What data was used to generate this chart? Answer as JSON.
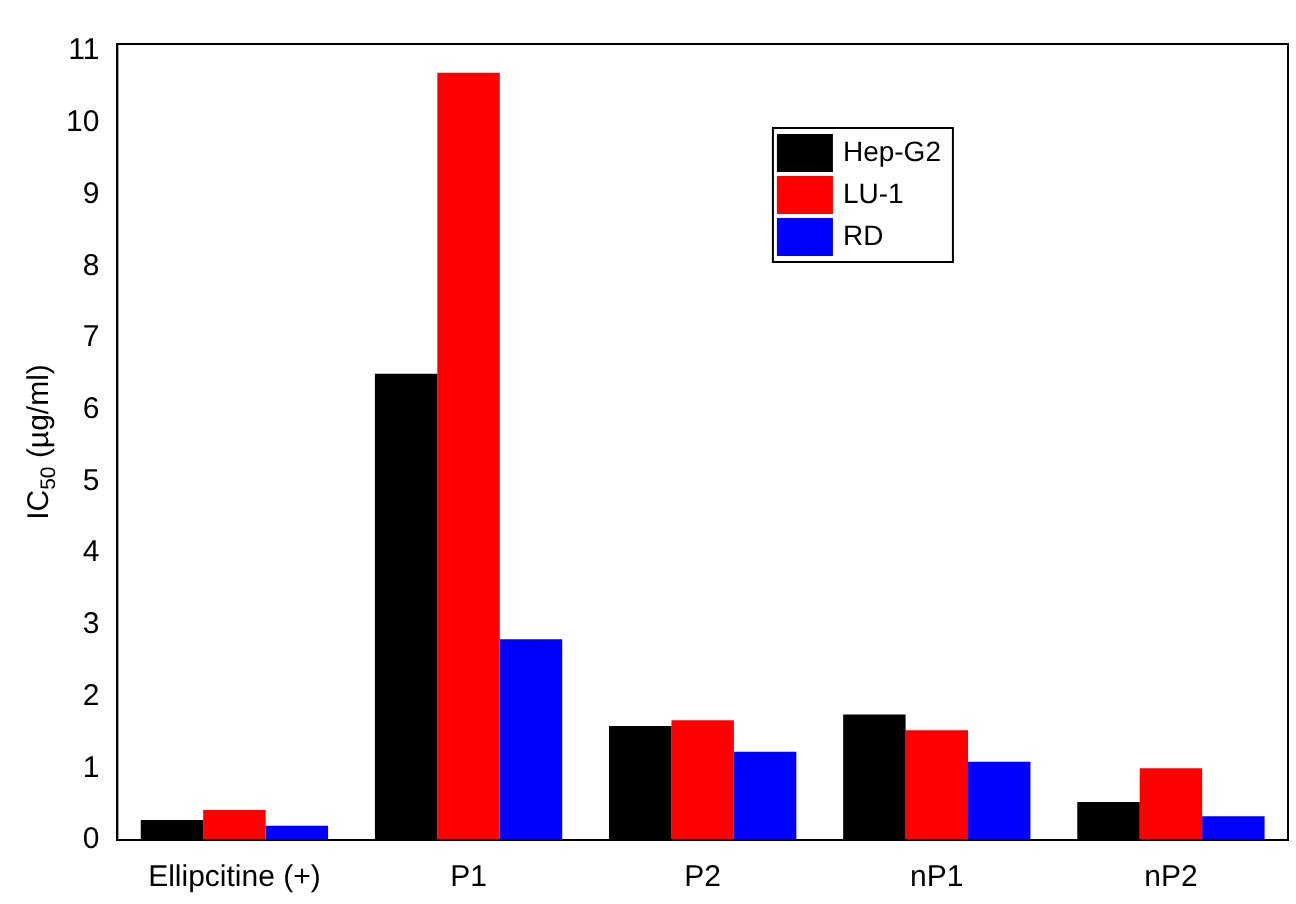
{
  "chart_data": {
    "type": "bar",
    "ylabel": "IC$_{50}$ (µg/ml)",
    "categories": [
      "Ellipcitine (+)",
      "P1",
      "P2",
      "nP1",
      "nP2"
    ],
    "series": [
      {
        "name": "Hep-G2",
        "color": "#000000",
        "values": [
          0.28,
          6.5,
          1.59,
          1.75,
          0.53
        ]
      },
      {
        "name": "LU-1",
        "color": "#ff0000",
        "values": [
          0.42,
          10.7,
          1.67,
          1.53,
          1.0
        ]
      },
      {
        "name": "RD",
        "color": "#0000ff",
        "values": [
          0.2,
          2.8,
          1.23,
          1.09,
          0.33
        ]
      }
    ],
    "ylim": [
      0,
      11.1
    ],
    "yticks": [
      0,
      1,
      2,
      3,
      4,
      5,
      6,
      7,
      8,
      9,
      10,
      11
    ],
    "grid": false,
    "legend": "top right"
  }
}
